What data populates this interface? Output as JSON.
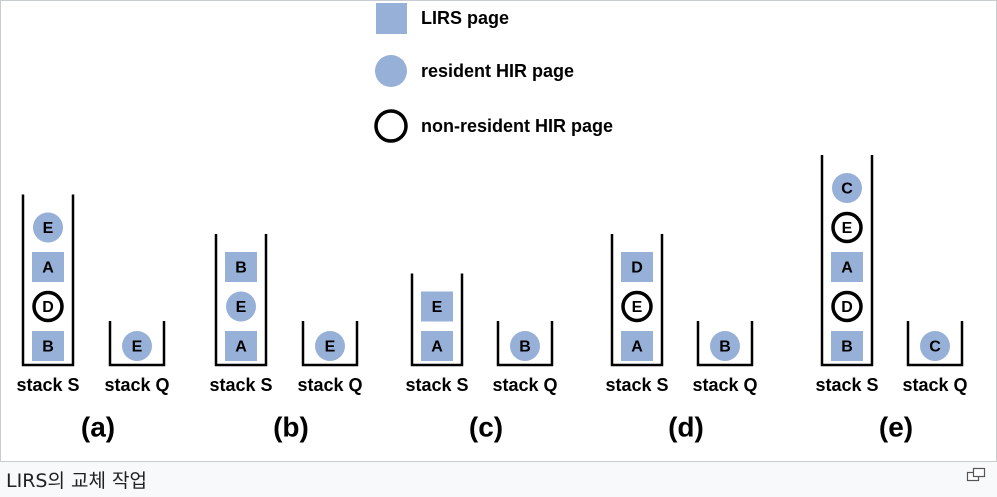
{
  "legend": [
    {
      "shape": "square",
      "label": "LIRS page"
    },
    {
      "shape": "filled-circle",
      "label": "resident HIR page"
    },
    {
      "shape": "ring",
      "label": "non-resident HIR page"
    }
  ],
  "colors": {
    "lirs": "#96b0d8",
    "resident_hir": "#96b0d8",
    "non_resident_stroke": "#000000",
    "wall": "#000000"
  },
  "panels": [
    {
      "label": "(a)",
      "stack_s": {
        "label": "stack S",
        "items": [
          {
            "type": "lirs",
            "name": "B"
          },
          {
            "type": "nonresident",
            "name": "D"
          },
          {
            "type": "lirs",
            "name": "A"
          },
          {
            "type": "resident",
            "name": "E"
          }
        ]
      },
      "stack_q": {
        "label": "stack Q",
        "items": [
          {
            "type": "resident",
            "name": "E"
          }
        ]
      }
    },
    {
      "label": "(b)",
      "stack_s": {
        "label": "stack S",
        "items": [
          {
            "type": "lirs",
            "name": "A"
          },
          {
            "type": "resident",
            "name": "E"
          },
          {
            "type": "lirs",
            "name": "B"
          }
        ]
      },
      "stack_q": {
        "label": "stack Q",
        "items": [
          {
            "type": "resident",
            "name": "E"
          }
        ]
      }
    },
    {
      "label": "(c)",
      "stack_s": {
        "label": "stack S",
        "items": [
          {
            "type": "lirs",
            "name": "A"
          },
          {
            "type": "lirs",
            "name": "E"
          }
        ]
      },
      "stack_q": {
        "label": "stack Q",
        "items": [
          {
            "type": "resident",
            "name": "B"
          }
        ]
      }
    },
    {
      "label": "(d)",
      "stack_s": {
        "label": "stack S",
        "items": [
          {
            "type": "lirs",
            "name": "A"
          },
          {
            "type": "nonresident",
            "name": "E"
          },
          {
            "type": "lirs",
            "name": "D"
          }
        ]
      },
      "stack_q": {
        "label": "stack Q",
        "items": [
          {
            "type": "resident",
            "name": "B"
          }
        ]
      }
    },
    {
      "label": "(e)",
      "stack_s": {
        "label": "stack S",
        "items": [
          {
            "type": "lirs",
            "name": "B"
          },
          {
            "type": "nonresident",
            "name": "D"
          },
          {
            "type": "lirs",
            "name": "A"
          },
          {
            "type": "nonresident",
            "name": "E"
          },
          {
            "type": "resident",
            "name": "C"
          }
        ]
      },
      "stack_q": {
        "label": "stack Q",
        "items": [
          {
            "type": "resident",
            "name": "C"
          }
        ]
      }
    }
  ],
  "caption": "LIRS의 교체 작업",
  "enlarge_icon": "enlarge-icon"
}
